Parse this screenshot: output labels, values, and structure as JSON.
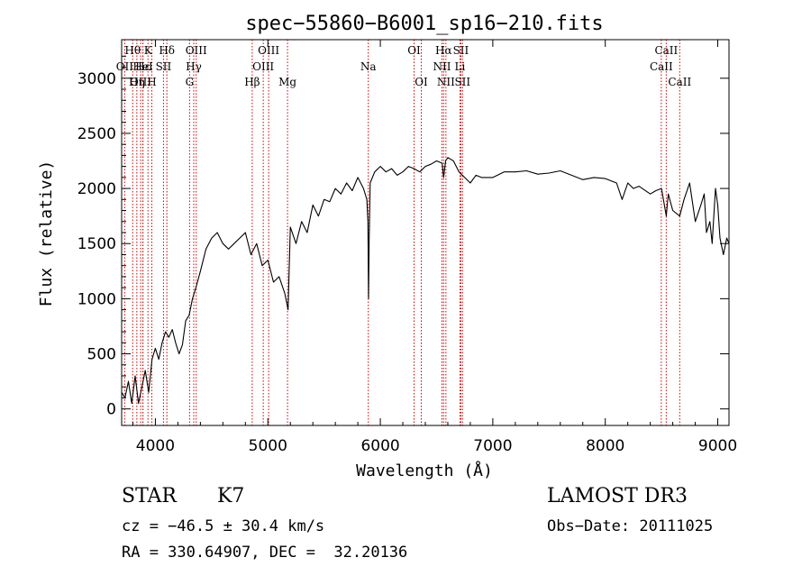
{
  "chart_data": {
    "type": "line",
    "title": "spec−55860−B6001_sp16−210.fits",
    "xlabel": "Wavelength (Å)",
    "ylabel": "Flux (relative)",
    "xlim": [
      3700,
      9100
    ],
    "ylim": [
      -150,
      3350
    ],
    "xticks": [
      4000,
      5000,
      6000,
      7000,
      8000,
      9000
    ],
    "yticks": [
      0,
      500,
      1000,
      1500,
      2000,
      2500,
      3000
    ],
    "grid": false,
    "series": [
      {
        "x": [
          3700,
          3730,
          3760,
          3790,
          3820,
          3850,
          3880,
          3910,
          3940,
          3970,
          4000,
          4030,
          4060,
          4090,
          4120,
          4150,
          4180,
          4210,
          4240,
          4270,
          4300,
          4330,
          4360,
          4400,
          4450,
          4500,
          4550,
          4600,
          4650,
          4700,
          4750,
          4800,
          4850,
          4900,
          4950,
          5000,
          5050,
          5100,
          5150,
          5180,
          5200,
          5250,
          5300,
          5350,
          5400,
          5450,
          5500,
          5550,
          5600,
          5650,
          5700,
          5750,
          5800,
          5850,
          5880,
          5890,
          5895,
          5900,
          5910,
          5950,
          6000,
          6050,
          6100,
          6150,
          6200,
          6250,
          6300,
          6350,
          6400,
          6450,
          6500,
          6550,
          6563,
          6580,
          6600,
          6650,
          6700,
          6750,
          6800,
          6850,
          6900,
          7000,
          7100,
          7200,
          7300,
          7400,
          7500,
          7600,
          7700,
          7800,
          7900,
          8000,
          8100,
          8150,
          8200,
          8250,
          8300,
          8400,
          8450,
          8500,
          8542,
          8560,
          8600,
          8662,
          8700,
          8750,
          8800,
          8850,
          8880,
          8900,
          8930,
          8950,
          8980,
          9000,
          9020,
          9050,
          9080,
          9100
        ],
        "y": [
          150,
          100,
          250,
          50,
          300,
          50,
          200,
          350,
          150,
          450,
          550,
          450,
          600,
          700,
          650,
          720,
          600,
          500,
          580,
          800,
          850,
          1000,
          1100,
          1250,
          1450,
          1550,
          1600,
          1500,
          1450,
          1500,
          1550,
          1600,
          1400,
          1500,
          1300,
          1350,
          1150,
          1200,
          1050,
          900,
          1650,
          1500,
          1700,
          1600,
          1850,
          1750,
          1900,
          1880,
          2000,
          1950,
          2050,
          1980,
          2100,
          2000,
          1900,
          1700,
          1000,
          1500,
          2050,
          2150,
          2200,
          2150,
          2180,
          2120,
          2150,
          2200,
          2180,
          2150,
          2200,
          2220,
          2250,
          2230,
          2100,
          2250,
          2280,
          2250,
          2150,
          2100,
          2050,
          2120,
          2100,
          2100,
          2150,
          2150,
          2160,
          2130,
          2140,
          2160,
          2120,
          2080,
          2100,
          2090,
          2050,
          1900,
          2050,
          2000,
          2020,
          1950,
          1980,
          2000,
          1750,
          1950,
          1800,
          1750,
          1900,
          2050,
          1700,
          1850,
          1950,
          1600,
          1700,
          1500,
          2000,
          1850,
          1550,
          1400,
          1550,
          1500
        ]
      }
    ],
    "lines": [
      {
        "label": "Hθ",
        "x": 3798,
        "row": 0
      },
      {
        "label": "OII",
        "x": 3727,
        "row": 1
      },
      {
        "label": "OIII",
        "x": 3869,
        "row": 2
      },
      {
        "label": "Hη",
        "x": 3835,
        "row": 2
      },
      {
        "label": "K",
        "x": 3934,
        "row": 0
      },
      {
        "label": "Hε",
        "x": 3889,
        "row": 1
      },
      {
        "label": "HeI",
        "x": 3889,
        "row": 1
      },
      {
        "label": "SII",
        "x": 4072,
        "row": 1
      },
      {
        "label": "H",
        "x": 3968,
        "row": 2
      },
      {
        "label": "Hδ",
        "x": 4102,
        "row": 0
      },
      {
        "label": "OIII",
        "x": 4363,
        "row": 0
      },
      {
        "label": "Hγ",
        "x": 4341,
        "row": 1
      },
      {
        "label": "G",
        "x": 4304,
        "row": 2
      },
      {
        "label": "Hβ",
        "x": 4861,
        "row": 2
      },
      {
        "label": "OIII",
        "x": 5007,
        "row": 0
      },
      {
        "label": "OIII",
        "x": 4959,
        "row": 1
      },
      {
        "label": "Mg",
        "x": 5175,
        "row": 2
      },
      {
        "label": "Na",
        "x": 5893,
        "row": 1
      },
      {
        "label": "OI",
        "x": 6300,
        "row": 0
      },
      {
        "label": "OI",
        "x": 6364,
        "row": 2
      },
      {
        "label": "Hα",
        "x": 6563,
        "row": 0
      },
      {
        "label": "NII",
        "x": 6548,
        "row": 1
      },
      {
        "label": "NII",
        "x": 6583,
        "row": 2
      },
      {
        "label": "SII",
        "x": 6716,
        "row": 0
      },
      {
        "label": "Li",
        "x": 6708,
        "row": 1
      },
      {
        "label": "SII",
        "x": 6731,
        "row": 2
      },
      {
        "label": "CaII",
        "x": 8542,
        "row": 0
      },
      {
        "label": "CaII",
        "x": 8498,
        "row": 1
      },
      {
        "label": "CaII",
        "x": 8662,
        "row": 2
      }
    ]
  },
  "info": {
    "class": "STAR",
    "subclass": "K7",
    "survey": "LAMOST DR3",
    "cz": "cz = −46.5 ± 30.4 km/s",
    "obs_date": "Obs−Date: 20111025",
    "coords": "RA = 330.64907, DEC =  32.20136"
  },
  "colors": {
    "line_marker": "#cc0000",
    "spectrum": "#000000"
  }
}
